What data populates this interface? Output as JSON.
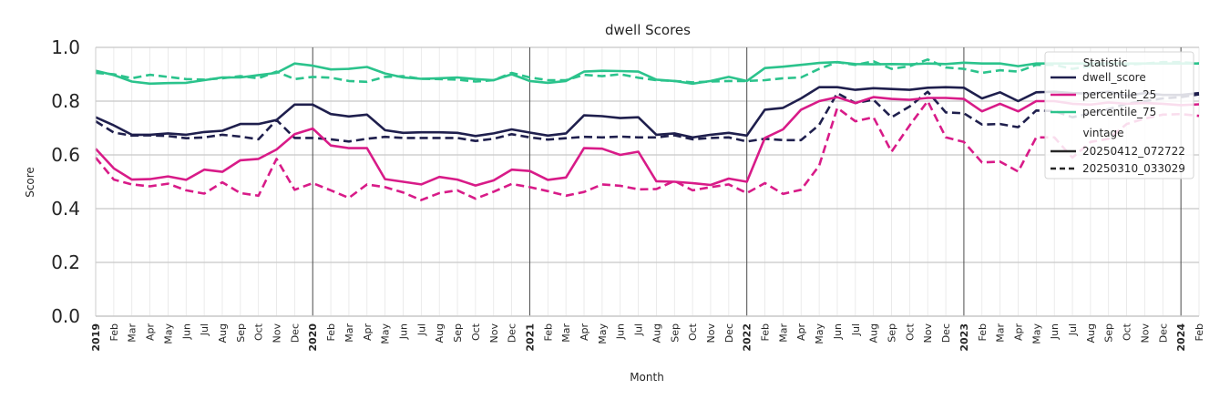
{
  "chart_data": {
    "type": "line",
    "title": "dwell Scores",
    "xlabel": "Month",
    "ylabel": "Score",
    "ylim": [
      0,
      1.0
    ],
    "yticks": [
      "0.0",
      "0.2",
      "0.4",
      "0.6",
      "0.8",
      "1.0"
    ],
    "x_start": "2019-01",
    "x_end": "2024-02",
    "x_tick_labels": [
      "2019",
      "Feb",
      "Mar",
      "Apr",
      "May",
      "Jun",
      "Jul",
      "Aug",
      "Sep",
      "Oct",
      "Nov",
      "Dec",
      "2020",
      "Feb",
      "Mar",
      "Apr",
      "May",
      "Jun",
      "Jul",
      "Aug",
      "Sep",
      "Oct",
      "Nov",
      "Dec",
      "2021",
      "Feb",
      "Mar",
      "Apr",
      "May",
      "Jun",
      "Jul",
      "Aug",
      "Sep",
      "Oct",
      "Nov",
      "Dec",
      "2022",
      "Feb",
      "Mar",
      "Apr",
      "May",
      "Jun",
      "Jul",
      "Aug",
      "Sep",
      "Oct",
      "Nov",
      "Dec",
      "2023",
      "Feb",
      "Mar",
      "Apr",
      "May",
      "Jun",
      "Jul",
      "Aug",
      "Sep",
      "Oct",
      "Nov",
      "Dec",
      "2024",
      "Feb"
    ],
    "year_lines": [
      "2019",
      "2020",
      "2021",
      "2022",
      "2023",
      "2024"
    ],
    "grid": true,
    "legend": {
      "placement": "top-right",
      "statistic_title": "Statistic",
      "vintage_title": "vintage",
      "statistics": [
        {
          "name": "dwell_score",
          "color": "#1f1f4d"
        },
        {
          "name": "percentile_25",
          "color": "#d81b88"
        },
        {
          "name": "percentile_75",
          "color": "#2bc38c"
        }
      ],
      "vintages": [
        {
          "name": "20250412_072722",
          "style": "solid"
        },
        {
          "name": "20250310_033029",
          "style": "dashed"
        }
      ]
    },
    "series": [
      {
        "name": "dwell_score",
        "vintage": "20250412_072722",
        "color": "#1f1f4d",
        "style": "solid",
        "values": [
          0.74,
          0.71,
          0.675,
          0.675,
          0.68,
          0.675,
          0.685,
          0.69,
          0.715,
          0.715,
          0.73,
          0.787,
          0.787,
          0.752,
          0.743,
          0.75,
          0.692,
          0.682,
          0.684,
          0.684,
          0.682,
          0.67,
          0.68,
          0.695,
          0.683,
          0.672,
          0.68,
          0.747,
          0.744,
          0.737,
          0.74,
          0.675,
          0.68,
          0.665,
          0.675,
          0.682,
          0.672,
          0.768,
          0.775,
          0.81,
          0.852,
          0.852,
          0.842,
          0.848,
          0.845,
          0.842,
          0.85,
          0.852,
          0.85,
          0.81,
          0.833,
          0.8,
          0.833,
          0.835,
          0.83,
          0.828,
          0.835,
          0.82,
          0.83,
          0.823,
          0.823,
          0.83
        ]
      },
      {
        "name": "dwell_score",
        "vintage": "20250310_033029",
        "color": "#1f1f4d",
        "style": "dashed",
        "values": [
          0.725,
          0.683,
          0.672,
          0.673,
          0.67,
          0.662,
          0.665,
          0.675,
          0.668,
          0.658,
          0.73,
          0.663,
          0.663,
          0.658,
          0.65,
          0.66,
          0.667,
          0.663,
          0.663,
          0.663,
          0.663,
          0.652,
          0.66,
          0.677,
          0.665,
          0.657,
          0.662,
          0.667,
          0.665,
          0.668,
          0.665,
          0.665,
          0.673,
          0.658,
          0.663,
          0.665,
          0.65,
          0.66,
          0.655,
          0.655,
          0.712,
          0.83,
          0.793,
          0.805,
          0.74,
          0.78,
          0.835,
          0.758,
          0.755,
          0.713,
          0.715,
          0.703,
          0.765,
          0.763,
          0.74,
          0.755,
          0.77,
          0.79,
          0.8,
          0.81,
          0.815,
          0.825
        ]
      },
      {
        "name": "percentile_25",
        "vintage": "20250412_072722",
        "color": "#d81b88",
        "style": "solid",
        "values": [
          0.623,
          0.55,
          0.508,
          0.51,
          0.52,
          0.507,
          0.545,
          0.537,
          0.58,
          0.585,
          0.62,
          0.677,
          0.698,
          0.635,
          0.625,
          0.625,
          0.51,
          0.5,
          0.49,
          0.518,
          0.508,
          0.486,
          0.505,
          0.545,
          0.54,
          0.507,
          0.516,
          0.625,
          0.623,
          0.6,
          0.612,
          0.502,
          0.5,
          0.495,
          0.488,
          0.512,
          0.5,
          0.663,
          0.695,
          0.768,
          0.8,
          0.815,
          0.793,
          0.815,
          0.808,
          0.805,
          0.812,
          0.812,
          0.808,
          0.762,
          0.79,
          0.762,
          0.8,
          0.8,
          0.79,
          0.787,
          0.795,
          0.79,
          0.793,
          0.79,
          0.785,
          0.788
        ]
      },
      {
        "name": "percentile_25",
        "vintage": "20250310_033029",
        "color": "#d81b88",
        "style": "dashed",
        "values": [
          0.59,
          0.508,
          0.49,
          0.483,
          0.493,
          0.468,
          0.456,
          0.498,
          0.458,
          0.448,
          0.585,
          0.47,
          0.495,
          0.468,
          0.44,
          0.49,
          0.48,
          0.46,
          0.432,
          0.458,
          0.468,
          0.437,
          0.463,
          0.492,
          0.48,
          0.465,
          0.448,
          0.462,
          0.49,
          0.485,
          0.472,
          0.473,
          0.503,
          0.468,
          0.48,
          0.49,
          0.458,
          0.495,
          0.455,
          0.47,
          0.56,
          0.775,
          0.725,
          0.74,
          0.612,
          0.71,
          0.8,
          0.665,
          0.648,
          0.572,
          0.575,
          0.538,
          0.665,
          0.665,
          0.59,
          0.648,
          0.66,
          0.715,
          0.735,
          0.75,
          0.752,
          0.745
        ]
      },
      {
        "name": "percentile_75",
        "vintage": "20250412_072722",
        "color": "#2bc38c",
        "style": "solid",
        "values": [
          0.913,
          0.897,
          0.873,
          0.865,
          0.867,
          0.868,
          0.878,
          0.888,
          0.888,
          0.897,
          0.905,
          0.94,
          0.932,
          0.918,
          0.92,
          0.927,
          0.903,
          0.888,
          0.883,
          0.885,
          0.888,
          0.882,
          0.878,
          0.9,
          0.875,
          0.868,
          0.875,
          0.91,
          0.913,
          0.912,
          0.91,
          0.88,
          0.875,
          0.865,
          0.875,
          0.89,
          0.875,
          0.923,
          0.928,
          0.935,
          0.942,
          0.945,
          0.938,
          0.937,
          0.938,
          0.937,
          0.94,
          0.938,
          0.943,
          0.94,
          0.94,
          0.93,
          0.94,
          0.94,
          0.94,
          0.94,
          0.94,
          0.94,
          0.94,
          0.94,
          0.94,
          0.94
        ]
      },
      {
        "name": "percentile_75",
        "vintage": "20250310_033029",
        "color": "#2bc38c",
        "style": "dashed",
        "values": [
          0.905,
          0.9,
          0.885,
          0.898,
          0.89,
          0.882,
          0.88,
          0.885,
          0.893,
          0.885,
          0.91,
          0.882,
          0.89,
          0.887,
          0.875,
          0.872,
          0.89,
          0.893,
          0.883,
          0.882,
          0.88,
          0.873,
          0.878,
          0.905,
          0.888,
          0.878,
          0.878,
          0.898,
          0.893,
          0.9,
          0.887,
          0.878,
          0.875,
          0.87,
          0.873,
          0.875,
          0.875,
          0.878,
          0.885,
          0.888,
          0.92,
          0.945,
          0.935,
          0.948,
          0.92,
          0.93,
          0.955,
          0.925,
          0.92,
          0.905,
          0.915,
          0.91,
          0.935,
          0.935,
          0.92,
          0.93,
          0.94,
          0.935,
          0.94,
          0.945,
          0.945,
          0.94
        ]
      }
    ]
  }
}
